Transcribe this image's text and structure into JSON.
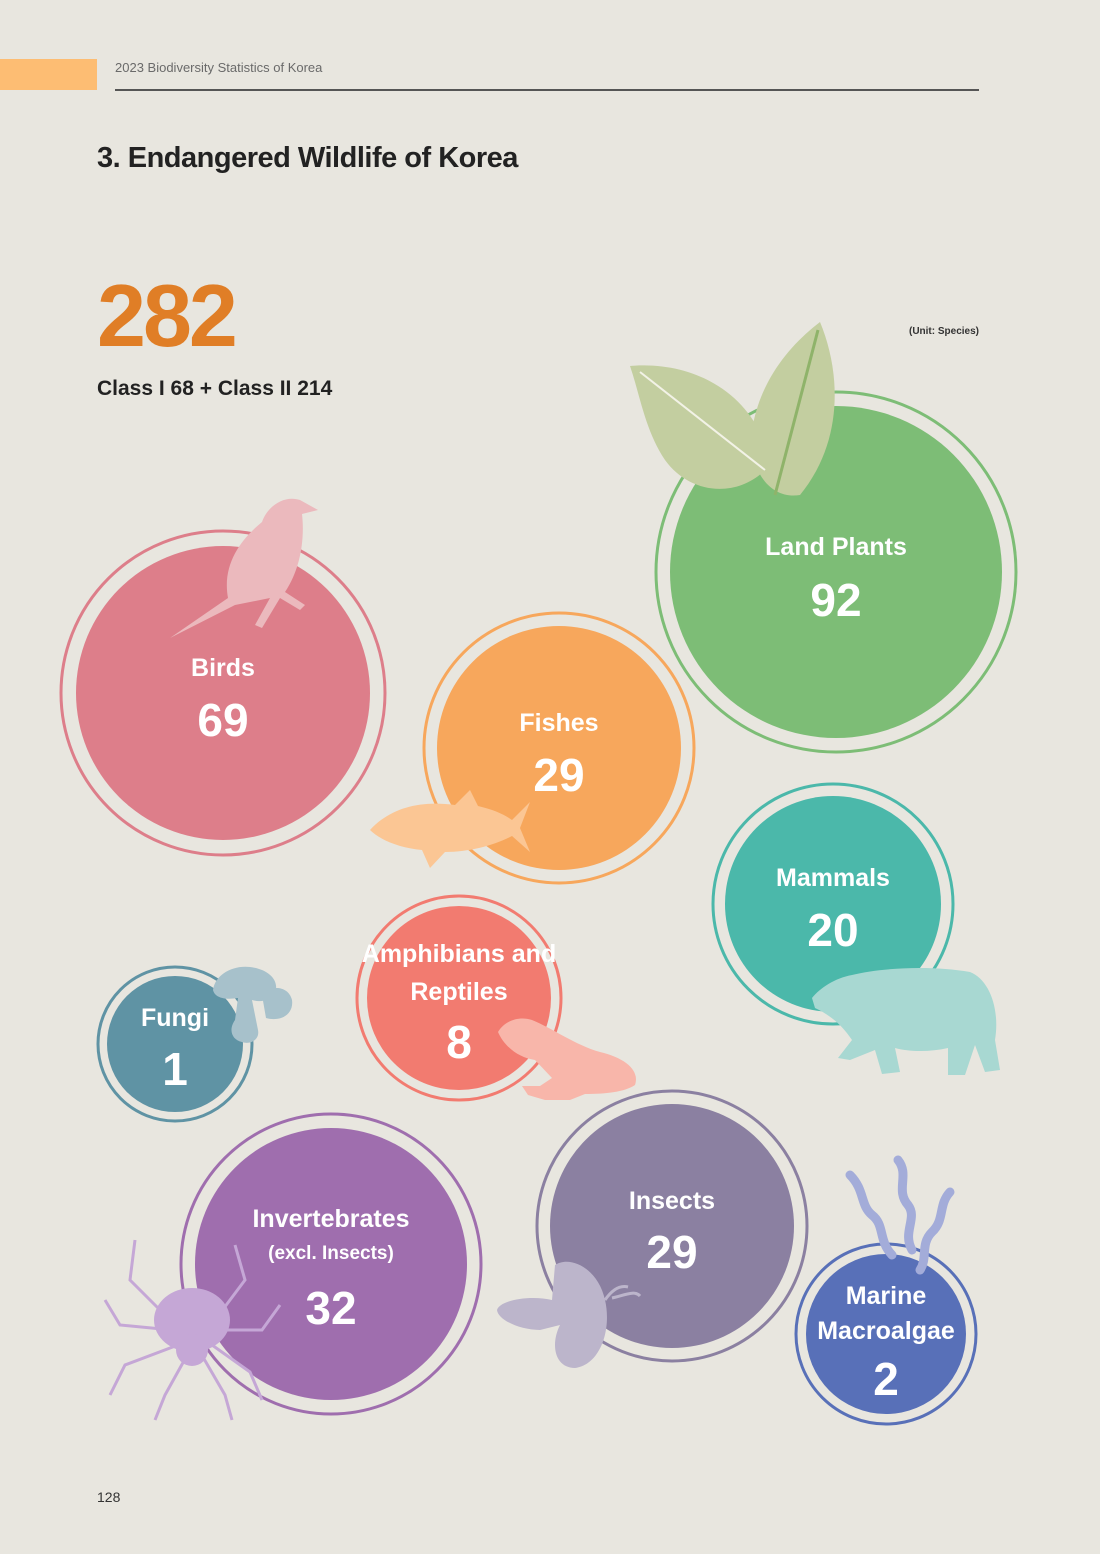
{
  "header": {
    "title": "2023 Biodiversity Statistics of Korea"
  },
  "section_title": "3. Endangered Wildlife of Korea",
  "summary": {
    "total": "282",
    "breakdown": "Class I 68 + Class II 214",
    "unit": "(Unit: Species)"
  },
  "categories": [
    {
      "label": "Land Plants",
      "value": "92",
      "color": "#7dbd76"
    },
    {
      "label": "Birds",
      "value": "69",
      "color": "#dd7e8a"
    },
    {
      "label": "Fishes",
      "value": "29",
      "color": "#f7a75c"
    },
    {
      "label": "Mammals",
      "value": "20",
      "color": "#4bb8aa"
    },
    {
      "label_line1": "Amphibians and",
      "label_line2": "Reptiles",
      "value": "8",
      "color": "#f27b70"
    },
    {
      "label": "Fungi",
      "value": "1",
      "color": "#5f93a4"
    },
    {
      "label": "Invertebrates",
      "sublabel": "(excl. Insects)",
      "value": "32",
      "color": "#9f6eae"
    },
    {
      "label": "Insects",
      "value": "29",
      "color": "#8b80a1"
    },
    {
      "label_line1": "Marine",
      "label_line2": "Macroalgae",
      "value": "2",
      "color": "#5870b8"
    }
  ],
  "icons": [
    "leaf-icon",
    "bird-icon",
    "fish-icon",
    "bear-icon",
    "frog-icon",
    "mushroom-icon",
    "spider-icon",
    "butterfly-icon",
    "seaweed-icon"
  ],
  "page_number": "128"
}
